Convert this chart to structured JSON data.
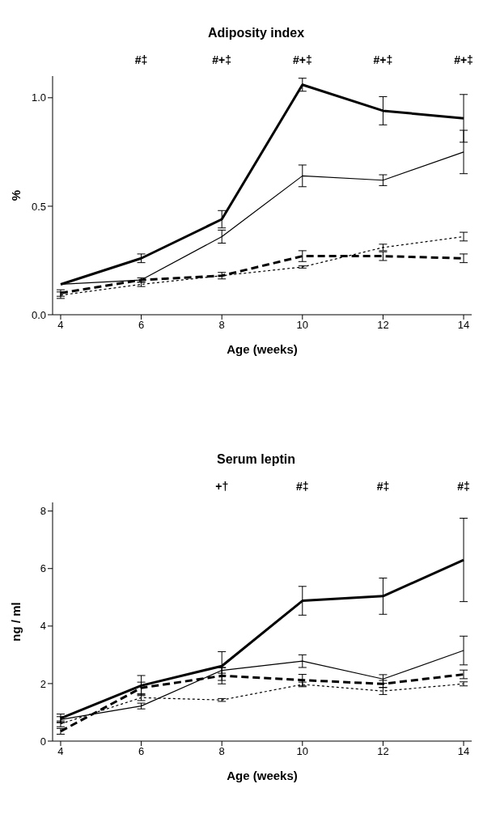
{
  "chart_data": [
    {
      "type": "line",
      "title": "Adiposity index",
      "xlabel": "Age (weeks)",
      "ylabel": "%",
      "x": [
        4,
        6,
        8,
        10,
        12,
        14
      ],
      "xlim": [
        3.8,
        14.2
      ],
      "xticks": [
        4,
        6,
        8,
        10,
        12,
        14
      ],
      "ylim": [
        0,
        1.1
      ],
      "yticks": [
        {
          "value": 0,
          "label": "0.0"
        },
        {
          "value": 0.5,
          "label": "0.5"
        },
        {
          "value": 1,
          "label": "1.0"
        }
      ],
      "grid": false,
      "legend": false,
      "marker": "none",
      "series": [
        {
          "color": "#000000",
          "line_style": "solid",
          "values": [
            0.14,
            0.26,
            0.44,
            1.06,
            0.94,
            0.905
          ],
          "errors": [
            null,
            0.02,
            0.04,
            0.03,
            0.065,
            0.11
          ]
        },
        {
          "color": "#000000",
          "line_style": "solid",
          "values": [
            0.14,
            0.16,
            0.36,
            0.64,
            0.62,
            0.75
          ],
          "errors": [
            null,
            null,
            0.03,
            0.05,
            0.025,
            0.1
          ]
        },
        {
          "color": "#000000",
          "line_style": "dashed",
          "values": [
            0.1,
            0.16,
            0.18,
            0.27,
            0.27,
            0.26
          ],
          "errors": [
            0.015,
            0.01,
            0.015,
            0.025,
            0.02,
            0.02
          ]
        },
        {
          "color": "#000000",
          "line_style": "dotted",
          "values": [
            0.09,
            0.14,
            0.18,
            0.22,
            0.31,
            0.36
          ],
          "errors": [
            0.015,
            0.01,
            null,
            0.005,
            0.015,
            0.02
          ]
        }
      ],
      "annotations": [
        "#‡",
        "#+‡",
        "#+‡",
        "#+‡",
        "#+‡"
      ]
    },
    {
      "type": "line",
      "title": "Serum leptin",
      "xlabel": "Age (weeks)",
      "ylabel": "ng / ml",
      "x": [
        4,
        6,
        8,
        10,
        12,
        14
      ],
      "xlim": [
        3.8,
        14.2
      ],
      "xticks": [
        4,
        6,
        8,
        10,
        12,
        14
      ],
      "ylim": [
        0,
        8.3
      ],
      "yticks": [
        0,
        2,
        4,
        6,
        8
      ],
      "grid": false,
      "legend": false,
      "marker": "none",
      "series": [
        {
          "color": "#000000",
          "line_style": "solid",
          "values": [
            0.79,
            1.93,
            2.61,
            4.88,
            5.04,
            6.3
          ],
          "errors": [
            0.15,
            0.35,
            0.5,
            0.5,
            0.63,
            1.45
          ]
        },
        {
          "color": "#000000",
          "line_style": "solid",
          "values": [
            0.75,
            1.22,
            2.46,
            2.78,
            2.16,
            3.15
          ],
          "errors": [
            0.1,
            0.1,
            0.1,
            0.22,
            0.15,
            0.5
          ]
        },
        {
          "color": "#000000",
          "line_style": "dashed",
          "values": [
            0.34,
            1.85,
            2.27,
            2.12,
            1.99,
            2.32
          ],
          "errors": [
            0.1,
            0.2,
            0.28,
            0.2,
            0.12,
            0.15
          ]
        },
        {
          "color": "#000000",
          "line_style": "dotted",
          "values": [
            0.6,
            1.51,
            1.43,
            1.97,
            1.74,
            1.99
          ],
          "errors": [
            0.1,
            0.1,
            0.05,
            0.08,
            0.12,
            0.07
          ]
        }
      ],
      "annotations": [
        "+†",
        "#‡",
        "#‡",
        "#‡"
      ]
    }
  ]
}
